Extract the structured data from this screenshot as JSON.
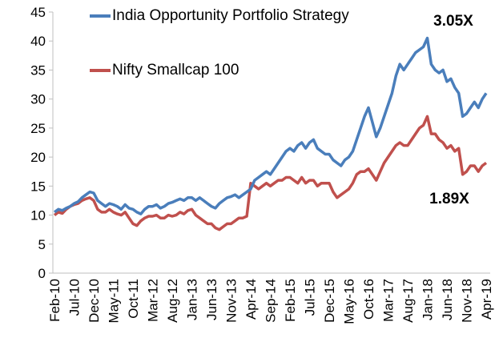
{
  "chart_data": {
    "type": "line",
    "categories": [
      "Feb-10",
      null,
      null,
      null,
      null,
      "Jul-10",
      null,
      null,
      null,
      null,
      "Dec-10",
      null,
      null,
      null,
      null,
      "May-11",
      null,
      null,
      null,
      null,
      "Oct-11",
      null,
      null,
      null,
      null,
      "Mar-12",
      null,
      null,
      null,
      null,
      "Aug-12",
      null,
      null,
      null,
      null,
      "Jan-13",
      null,
      null,
      null,
      null,
      "Jun-13",
      null,
      null,
      null,
      null,
      "Nov-13",
      null,
      null,
      null,
      null,
      "Apr-14",
      null,
      null,
      null,
      null,
      "Sep-14",
      null,
      null,
      null,
      null,
      "Feb-15",
      null,
      null,
      null,
      null,
      "Jul-15",
      null,
      null,
      null,
      null,
      "Dec-15",
      null,
      null,
      null,
      null,
      "May-16",
      null,
      null,
      null,
      null,
      "Oct-16",
      null,
      null,
      null,
      null,
      "Mar-17",
      null,
      null,
      null,
      null,
      "Aug-17",
      null,
      null,
      null,
      null,
      "Jan-18",
      null,
      null,
      null,
      null,
      "Jun-18",
      null,
      null,
      null,
      null,
      "Nov-18",
      null,
      null,
      null,
      null,
      "Apr-19"
    ],
    "series": [
      {
        "name": "India Opportunity Portfolio Strategy",
        "color": "#4a7ebb",
        "values": [
          10.5,
          11,
          10.8,
          11.2,
          11.5,
          12,
          12.3,
          13,
          13.5,
          14,
          13.8,
          12.5,
          12,
          11.5,
          12,
          11.8,
          11.5,
          11,
          11.8,
          11.2,
          11,
          10.5,
          10.2,
          11,
          11.5,
          11.5,
          11.8,
          11.2,
          11.5,
          12,
          12.2,
          12.5,
          12.8,
          12.5,
          13,
          13,
          12.5,
          13,
          12.5,
          12,
          11.5,
          11.2,
          12,
          12.5,
          13,
          13.2,
          13.5,
          13,
          13.5,
          14,
          14.5,
          16,
          16.5,
          17,
          17.5,
          17,
          18,
          19,
          20,
          21,
          21.5,
          21,
          22,
          22.5,
          21.5,
          22.5,
          23,
          21.5,
          21,
          20.5,
          20.5,
          19.5,
          19,
          18.5,
          19.5,
          20,
          21,
          23,
          25,
          27,
          28.5,
          26,
          23.5,
          25,
          27,
          29,
          31,
          34,
          36,
          35,
          36,
          37,
          38,
          38.5,
          39,
          40.5,
          36,
          35,
          34.5,
          35,
          33,
          33.5,
          32,
          31,
          27,
          27.5,
          28.5,
          29.5,
          28.5,
          30,
          31
        ]
      },
      {
        "name": "Nifty Smallcap 100",
        "color": "#c0504d",
        "values": [
          10,
          10.5,
          10.3,
          11,
          11.5,
          11.8,
          12,
          12.5,
          12.8,
          13,
          12.5,
          11,
          10.5,
          10.5,
          11,
          10.5,
          10.2,
          10,
          10.5,
          9.5,
          8.5,
          8.2,
          9,
          9.5,
          9.8,
          9.8,
          10,
          9.5,
          9.5,
          10,
          9.8,
          10,
          10.5,
          10.2,
          10.8,
          11,
          10,
          9.5,
          9,
          8.5,
          8.5,
          7.8,
          7.5,
          8,
          8.5,
          8.5,
          9,
          9.5,
          9.5,
          9.8,
          15.5,
          15,
          14.5,
          15,
          15.5,
          15,
          15.5,
          16,
          16,
          16.5,
          16.5,
          16,
          15.5,
          16.5,
          15.5,
          16,
          16,
          15,
          15.5,
          15.5,
          15.5,
          14,
          13,
          13.5,
          14,
          14.5,
          15.5,
          17,
          17.5,
          17.5,
          18,
          17,
          16,
          17.5,
          19,
          20,
          21,
          22,
          22.5,
          22,
          22,
          23,
          24,
          25,
          25.5,
          27,
          24,
          24,
          23,
          22.5,
          21.5,
          22,
          21,
          21.5,
          17,
          17.5,
          18.5,
          18.5,
          17.5,
          18.5,
          19
        ]
      }
    ],
    "annotations": [
      "3.05X",
      "1.89X"
    ],
    "ylim": [
      0,
      45
    ],
    "yticks": [
      0,
      5,
      10,
      15,
      20,
      25,
      30,
      35,
      40,
      45
    ],
    "grid": false,
    "legend": "upper left"
  }
}
